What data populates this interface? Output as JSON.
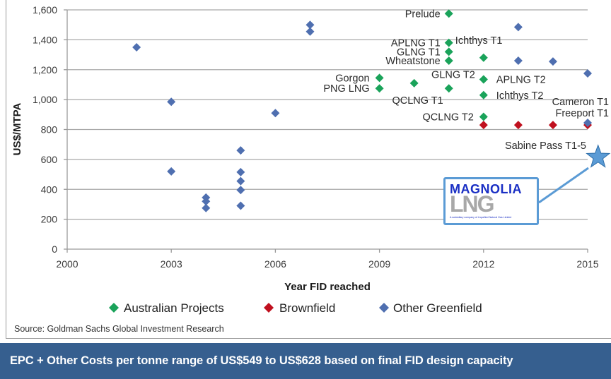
{
  "chart_data": {
    "type": "scatter",
    "title": "",
    "xlabel": "Year FID reached",
    "ylabel": "US$/MTPA",
    "xlim": [
      2000,
      2015
    ],
    "ylim": [
      0,
      1600
    ],
    "xticks": [
      2000,
      2003,
      2006,
      2009,
      2012,
      2015
    ],
    "xtick_labels": [
      "2000",
      "2003",
      "2006",
      "2009",
      "2012",
      "2015"
    ],
    "yticks": [
      0,
      200,
      400,
      600,
      800,
      1000,
      1200,
      1400,
      1600
    ],
    "ytick_labels": [
      "0",
      "200",
      "400",
      "600",
      "800",
      "1,000",
      "1,200",
      "1,400",
      "1,600"
    ],
    "grid": "horizontal",
    "legend_position": "bottom",
    "series": [
      {
        "name": "Australian Projects",
        "color": "#1aa35a",
        "points": [
          {
            "x": 2011,
            "y": 1575,
            "label": "Prelude"
          },
          {
            "x": 2011,
            "y": 1380,
            "label": "APLNG T1"
          },
          {
            "x": 2011,
            "y": 1320,
            "label": "GLNG T1"
          },
          {
            "x": 2011,
            "y": 1260,
            "label": "Wheatstone"
          },
          {
            "x": 2009,
            "y": 1145,
            "label": "Gorgon"
          },
          {
            "x": 2009,
            "y": 1075,
            "label": "PNG LNG"
          },
          {
            "x": 2010,
            "y": 1110,
            "label": ""
          },
          {
            "x": 2011,
            "y": 1075,
            "label": "QCLNG T1"
          },
          {
            "x": 2012,
            "y": 1280,
            "label": "Ichthys T1"
          },
          {
            "x": 2012,
            "y": 1135,
            "label": "GLNG T2"
          },
          {
            "x": 2012,
            "y": 1135,
            "label": "APLNG T2"
          },
          {
            "x": 2012,
            "y": 1030,
            "label": "Ichthys T2"
          },
          {
            "x": 2012,
            "y": 885,
            "label": "QCLNG T2"
          }
        ]
      },
      {
        "name": "Brownfield",
        "color": "#c0101e",
        "points": [
          {
            "x": 2012,
            "y": 830,
            "label": ""
          },
          {
            "x": 2013,
            "y": 830,
            "label": ""
          },
          {
            "x": 2014,
            "y": 830,
            "label": ""
          },
          {
            "x": 2015,
            "y": 830,
            "label": ""
          }
        ]
      },
      {
        "name": "Other Greenfield",
        "color": "#4f6fb0",
        "points": [
          {
            "x": 2002,
            "y": 1350,
            "label": ""
          },
          {
            "x": 2003,
            "y": 985,
            "label": ""
          },
          {
            "x": 2003,
            "y": 520,
            "label": ""
          },
          {
            "x": 2004,
            "y": 345,
            "label": ""
          },
          {
            "x": 2004,
            "y": 320,
            "label": ""
          },
          {
            "x": 2004,
            "y": 275,
            "label": ""
          },
          {
            "x": 2005,
            "y": 660,
            "label": ""
          },
          {
            "x": 2005,
            "y": 515,
            "label": ""
          },
          {
            "x": 2005,
            "y": 455,
            "label": ""
          },
          {
            "x": 2005,
            "y": 395,
            "label": ""
          },
          {
            "x": 2005,
            "y": 290,
            "label": ""
          },
          {
            "x": 2006,
            "y": 910,
            "label": ""
          },
          {
            "x": 2007,
            "y": 1500,
            "label": ""
          },
          {
            "x": 2007,
            "y": 1455,
            "label": ""
          },
          {
            "x": 2013,
            "y": 1485,
            "label": ""
          },
          {
            "x": 2013,
            "y": 1260,
            "label": ""
          },
          {
            "x": 2014,
            "y": 1255,
            "label": ""
          },
          {
            "x": 2015,
            "y": 1175,
            "label": ""
          },
          {
            "x": 2015,
            "y": 845,
            "label": ""
          }
        ]
      }
    ],
    "annotations": [
      {
        "text": "Cameron T1",
        "x": 2015,
        "y": 845
      },
      {
        "text": "Freeport T1",
        "x": 2015,
        "y": 830
      },
      {
        "text": "Sabine Pass T1-5",
        "x": 2015,
        "y": 830
      }
    ],
    "highlight": {
      "name": "Magnolia LNG",
      "x": 2015.3,
      "y": 615,
      "marker": "star",
      "color": "#5b9bd5"
    },
    "source": "Source: Goldman Sachs Global Investment Research"
  },
  "logo": {
    "line1": "MAGNOLIA",
    "line2": "LNG",
    "tagline": "A subsidiary company of Liquefied Natural Gas Limited"
  },
  "banner": {
    "text": "EPC + Other Costs per tonne range of US$549 to US$628 based on final FID design capacity",
    "background": "#365f8f"
  }
}
